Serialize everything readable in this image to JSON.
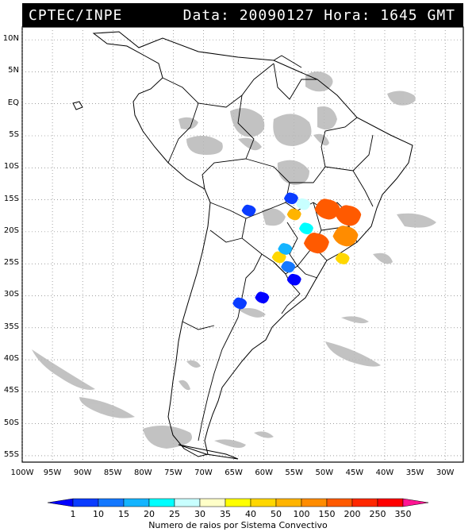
{
  "header": {
    "source": "CPTEC/INPE",
    "date_label": "Data:",
    "date": "20090127",
    "time_label": "Hora:",
    "time": "1645",
    "timezone": "GMT"
  },
  "lat_labels": [
    "10N",
    "5N",
    "EQ",
    "5S",
    "10S",
    "15S",
    "20S",
    "25S",
    "30S",
    "35S",
    "40S",
    "45S",
    "50S",
    "55S"
  ],
  "lon_labels": [
    "100W",
    "95W",
    "90W",
    "85W",
    "80W",
    "75W",
    "70W",
    "65W",
    "60W",
    "55W",
    "50W",
    "45W",
    "40W",
    "35W",
    "30W"
  ],
  "legend": {
    "caption": "Numero de raios por Sistema Convectivo",
    "levels": [
      "1",
      "10",
      "15",
      "20",
      "25",
      "30",
      "35",
      "40",
      "50",
      "100",
      "150",
      "200",
      "250",
      "350"
    ],
    "colors": [
      "#0000ff",
      "#0a3cff",
      "#1478ff",
      "#14b4ff",
      "#00ffff",
      "#c8ffff",
      "#ffffc8",
      "#ffff00",
      "#ffd700",
      "#ffb400",
      "#ff8c00",
      "#ff5a00",
      "#ff2800",
      "#ff0000",
      "#ff1493"
    ]
  },
  "systems": [
    {
      "lon": -55.5,
      "lat": -14.8,
      "level": "10",
      "color": "#0a3cff"
    },
    {
      "lon": -62.5,
      "lat": -16.7,
      "level": "10",
      "color": "#0a3cff"
    },
    {
      "lon": -53.5,
      "lat": -15.7,
      "level": "30",
      "color": "#c8ffff"
    },
    {
      "lon": -55.0,
      "lat": -17.3,
      "level": "100",
      "color": "#ffb400"
    },
    {
      "lon": -53.0,
      "lat": -19.5,
      "level": "25",
      "color": "#00ffff"
    },
    {
      "lon": -49.5,
      "lat": -16.5,
      "level": "200",
      "color": "#ff5a00"
    },
    {
      "lon": -46.0,
      "lat": -17.5,
      "level": "200",
      "color": "#ff5a00"
    },
    {
      "lon": -51.3,
      "lat": -21.8,
      "level": "200",
      "color": "#ff5a00"
    },
    {
      "lon": -46.5,
      "lat": -20.7,
      "level": "150",
      "color": "#ff8c00"
    },
    {
      "lon": -47.0,
      "lat": -24.2,
      "level": "50",
      "color": "#ffd700"
    },
    {
      "lon": -57.5,
      "lat": -24.0,
      "level": "50",
      "color": "#ffd700"
    },
    {
      "lon": -56.0,
      "lat": -25.5,
      "level": "15",
      "color": "#1478ff"
    },
    {
      "lon": -56.5,
      "lat": -22.7,
      "level": "20",
      "color": "#14b4ff"
    },
    {
      "lon": -55.0,
      "lat": -27.5,
      "level": "1",
      "color": "#0000ff"
    },
    {
      "lon": -64.0,
      "lat": -31.2,
      "level": "10",
      "color": "#0a3cff"
    },
    {
      "lon": -60.3,
      "lat": -30.3,
      "level": "1",
      "color": "#0000ff"
    }
  ]
}
